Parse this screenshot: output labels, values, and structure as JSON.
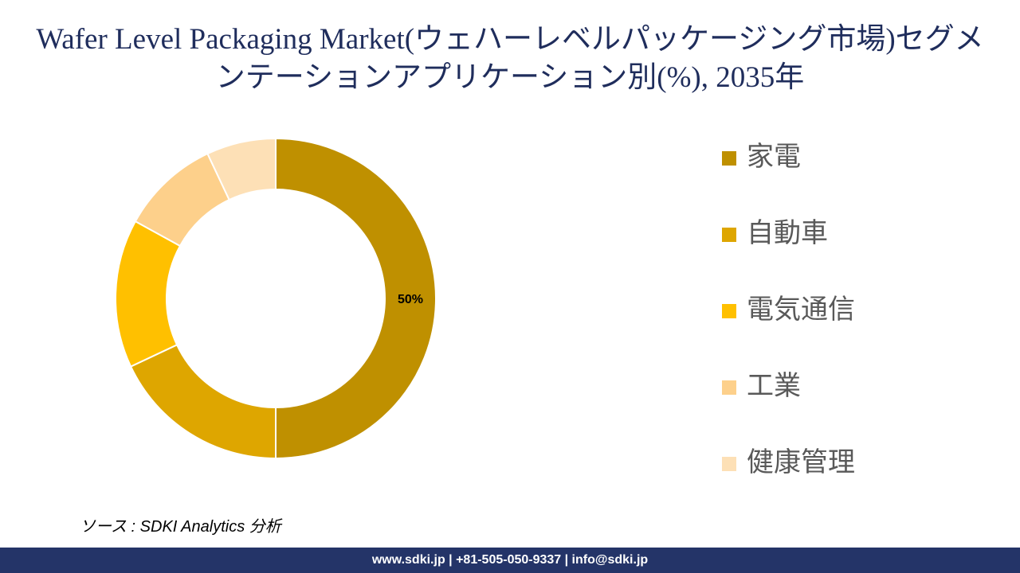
{
  "chart_data": {
    "type": "donut",
    "title": "Wafer Level Packaging Market(ウェハーレベルパッケージング市場)セグメンテーションアプリケーション別(%), 2035年",
    "categories": [
      "家電",
      "自動車",
      "電気通信",
      "工業",
      "健康管理"
    ],
    "values": [
      50,
      18,
      15,
      10,
      7
    ],
    "value_labels": [
      "50%",
      null,
      null,
      null,
      null
    ],
    "colors": [
      "#bf9000",
      "#dea600",
      "#ffc000",
      "#fdd08b",
      "#fde0b6"
    ],
    "legend": "right"
  },
  "source": "ソース : SDKI Analytics 分析",
  "footer": "www.sdki.jp | +81-505-050-9337 | info@sdki.jp"
}
